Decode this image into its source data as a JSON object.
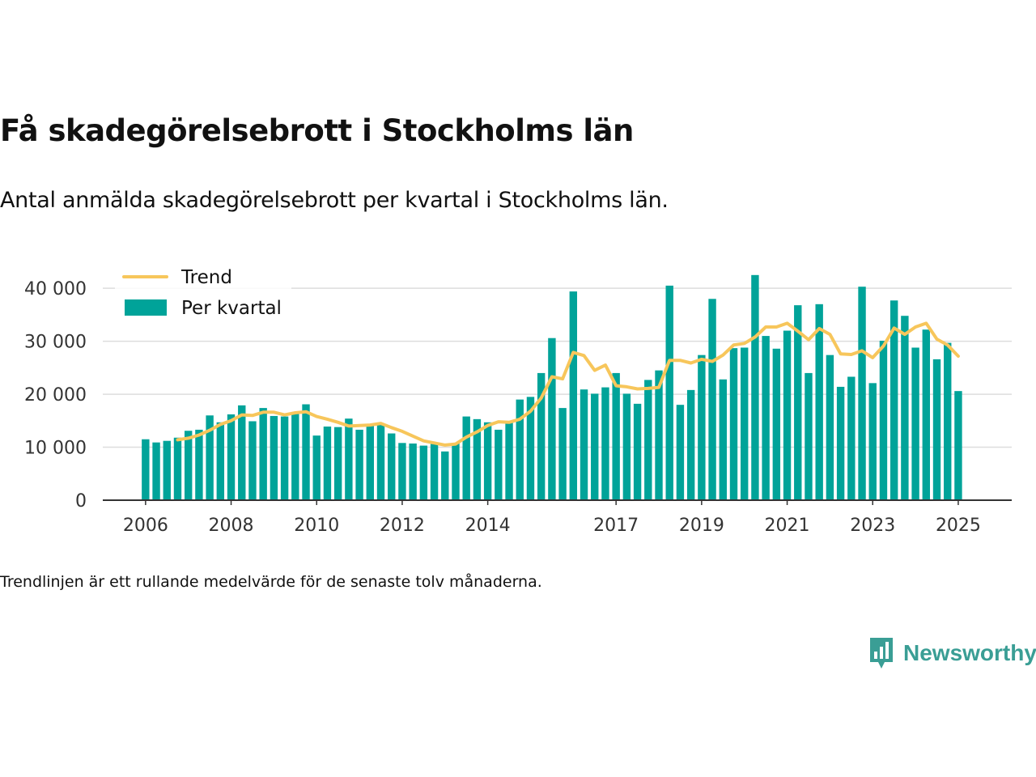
{
  "title": "Få skadegörelsebrott i Stockholms län",
  "subtitle": "Antal anmälda skadegörelsebrott per kvartal i Stockholms län.",
  "note": "Trendlinjen är ett rullande medelvärde för de senaste tolv månaderna.",
  "brand": {
    "name": "Newsworthy",
    "icon": "newsworthy-logo-icon"
  },
  "colors": {
    "bar": "#00a399",
    "trend": "#f7c65b",
    "grid": "#dddddd",
    "axis": "#333333"
  },
  "chart_data": {
    "type": "bar",
    "x_start": 2006.0,
    "x_step": 0.25,
    "xlim": [
      2005.0,
      2026.25
    ],
    "ylim": [
      0,
      44000
    ],
    "x_ticks": [
      {
        "value": 2006,
        "label": "2006"
      },
      {
        "value": 2008,
        "label": "2008"
      },
      {
        "value": 2010,
        "label": "2010"
      },
      {
        "value": 2012,
        "label": "2012"
      },
      {
        "value": 2014,
        "label": "2014"
      },
      {
        "value": 2017,
        "label": "2017"
      },
      {
        "value": 2019,
        "label": "2019"
      },
      {
        "value": 2021,
        "label": "2021"
      },
      {
        "value": 2023,
        "label": "2023"
      },
      {
        "value": 2025,
        "label": "2025"
      }
    ],
    "y_ticks": [
      {
        "value": 0,
        "label": "0"
      },
      {
        "value": 10000,
        "label": "10 000"
      },
      {
        "value": 20000,
        "label": "20 000"
      },
      {
        "value": 30000,
        "label": "30 000"
      },
      {
        "value": 40000,
        "label": "40 000"
      }
    ],
    "grid": true,
    "legend_position": "top-left",
    "series": [
      {
        "name": "Per kvartal",
        "type": "bar",
        "values": [
          11500,
          10900,
          11200,
          11800,
          13100,
          13300,
          16000,
          14700,
          16200,
          17900,
          14900,
          17400,
          15900,
          15800,
          16500,
          18100,
          12200,
          13900,
          13800,
          15400,
          13300,
          14300,
          14300,
          12600,
          10800,
          10700,
          10300,
          10600,
          9200,
          10800,
          15800,
          15300,
          14700,
          13300,
          14600,
          19000,
          19500,
          24000,
          30600,
          17400,
          39400,
          20900,
          20100,
          21300,
          24000,
          20100,
          18200,
          22700,
          24500,
          40500,
          18000,
          20800,
          27400,
          38000,
          22800,
          28700,
          28800,
          42500,
          31000,
          28600,
          32000,
          36800,
          24000,
          37000,
          27400,
          21400,
          23300,
          40300,
          22100,
          30100,
          37700,
          34800,
          28800,
          32200,
          26600,
          29700,
          20600
        ]
      },
      {
        "name": "Trend",
        "type": "line",
        "x_start": 2006.75,
        "values": [
          11400,
          11700,
          12300,
          13200,
          14300,
          15000,
          16100,
          16000,
          16600,
          16600,
          16100,
          16500,
          16700,
          15800,
          15300,
          14700,
          14000,
          14100,
          14200,
          14500,
          13700,
          13000,
          12100,
          11200,
          10800,
          10400,
          10600,
          11900,
          12900,
          14100,
          14800,
          14700,
          15300,
          16800,
          19300,
          23300,
          22900,
          27900,
          27300,
          24500,
          25500,
          21600,
          21400,
          21000,
          21100,
          21300,
          26400,
          26400,
          25900,
          26600,
          26200,
          27400,
          29300,
          29600,
          30800,
          32700,
          32700,
          33400,
          31900,
          30300,
          32400,
          31300,
          27600,
          27500,
          28200,
          26900,
          29100,
          32500,
          31300,
          32700,
          33400,
          30400,
          29300,
          27200
        ]
      }
    ]
  }
}
